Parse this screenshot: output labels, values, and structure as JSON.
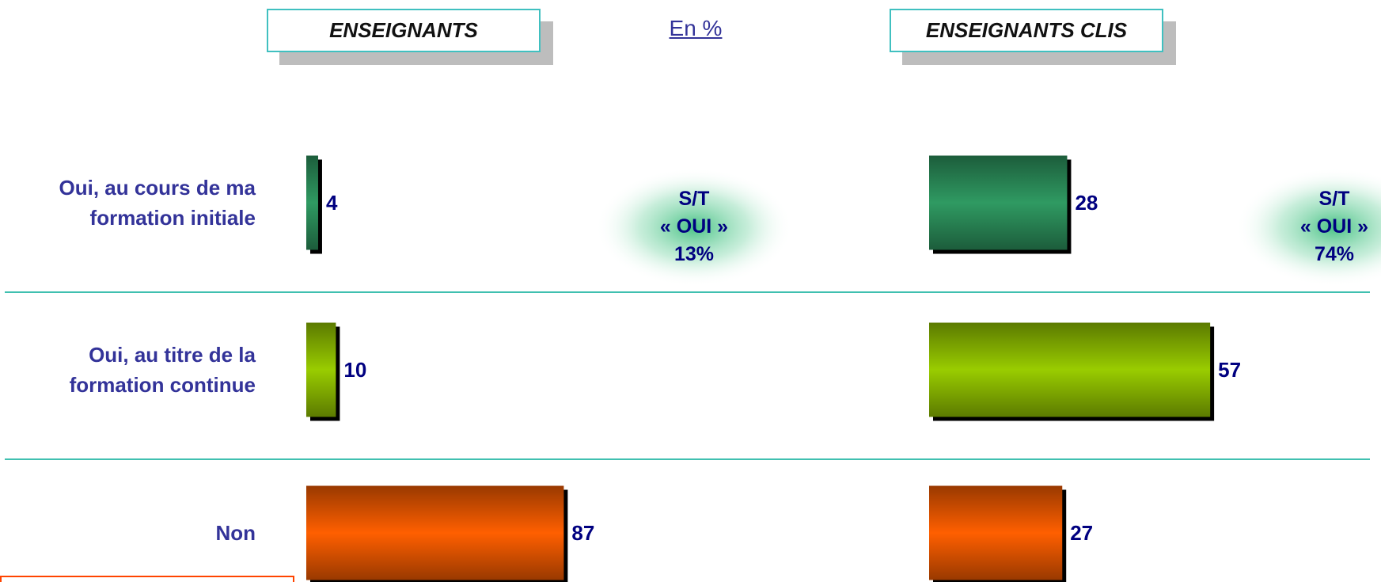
{
  "chart_data": {
    "type": "bar",
    "orientation": "horizontal",
    "subtitle": "En %",
    "categories": [
      "Oui, au cours de ma\nformation initiale",
      "Oui, au titre de la\nformation continue",
      "Non"
    ],
    "colors": [
      "#2f9a62",
      "#99cc00",
      "#ff5f00"
    ],
    "series": [
      {
        "name": "ENSEIGNANTS",
        "values": [
          4,
          10,
          87
        ],
        "annotation": "S/T\n« OUI »\n13%"
      },
      {
        "name": "ENSEIGNANTS CLIS",
        "values": [
          28,
          57,
          27
        ],
        "annotation": "S/T\n« OUI »\n74%"
      }
    ]
  }
}
